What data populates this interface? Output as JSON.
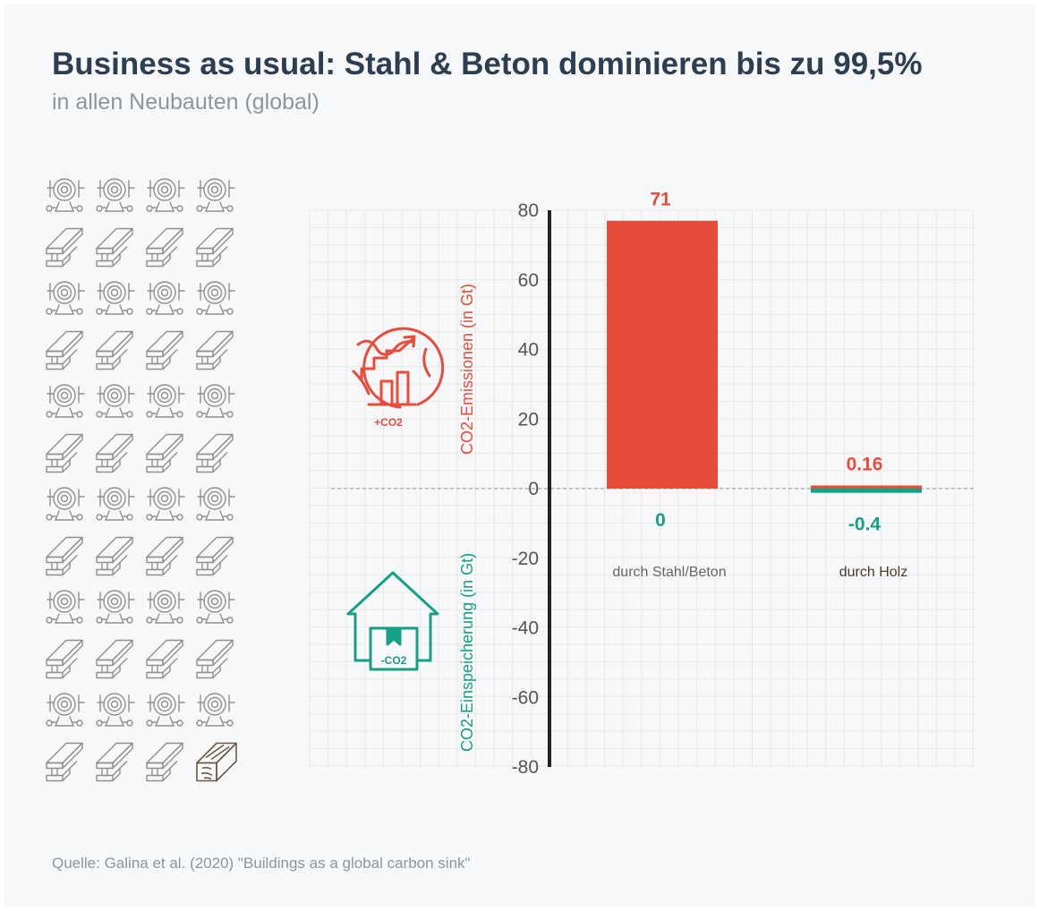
{
  "title": "Business as usual: Stahl & Beton dominieren bis zu 99,5%",
  "subtitle": "in allen Neubauten (global)",
  "source": "Quelle: Galina et al. (2020) \"Buildings as a global carbon sink\"",
  "colors": {
    "emission": "#e74c3c",
    "storage": "#16a085",
    "icon_gray": "#909090",
    "wood": "#6b5a44",
    "text_dark": "#2c3e50"
  },
  "icon_grid": {
    "columns": 4,
    "rows": [
      "concrete",
      "steel",
      "concrete",
      "steel",
      "concrete",
      "steel",
      "concrete",
      "steel",
      "concrete",
      "steel",
      "concrete",
      "steel"
    ],
    "last_icon": "wood"
  },
  "icons": {
    "emission_icon_label": "+CO2",
    "storage_icon_label": "-CO2"
  },
  "chart_data": {
    "type": "bar",
    "title": "",
    "ylabel_top": "CO2-Emissionen (in Gt)",
    "ylabel_bottom": "CO2-Einspeicherung (in Gt)",
    "ylim": [
      -80,
      80
    ],
    "yticks": [
      80,
      60,
      40,
      20,
      0,
      -20,
      -40,
      -60,
      -80
    ],
    "categories": [
      "durch Stahl/Beton",
      "durch Holz"
    ],
    "series": [
      {
        "name": "CO2-Emissionen",
        "values": [
          71,
          0.16
        ],
        "labels": [
          "71",
          "0.16"
        ],
        "bar_values": [
          77,
          0.9
        ]
      },
      {
        "name": "CO2-Einspeicherung",
        "values": [
          0,
          -0.4
        ],
        "labels": [
          "0",
          "-0.4"
        ],
        "bar_values": [
          0,
          -1.2
        ]
      }
    ]
  }
}
